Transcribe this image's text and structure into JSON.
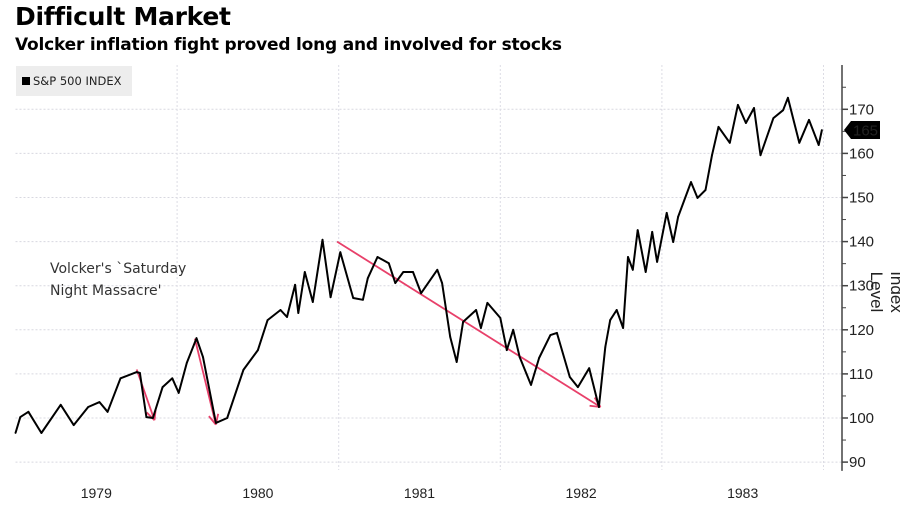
{
  "chart_data": {
    "type": "line",
    "title": "Difficult Market",
    "subtitle": "Volcker inflation fight proved long and involved for stocks",
    "ylabel": "Index Level",
    "xlabel": "",
    "ylim": [
      88,
      179
    ],
    "xlim": [
      1979.0,
      1984.0
    ],
    "y_axis_side": "right",
    "y_ticks": [
      90,
      100,
      110,
      120,
      130,
      140,
      150,
      160,
      170
    ],
    "x_ticks": [
      {
        "label": "1979",
        "value": 1979.5
      },
      {
        "label": "1980",
        "value": 1980.5
      },
      {
        "label": "1981",
        "value": 1981.5
      },
      {
        "label": "1982",
        "value": 1982.5
      },
      {
        "label": "1983",
        "value": 1983.5
      }
    ],
    "grid": true,
    "legend": {
      "position": "top-left",
      "entries": [
        "S&P 500 INDEX"
      ]
    },
    "last_value_label": "165",
    "line_color": "#000000",
    "arrow_color": "#e8406a",
    "annotation": "Volcker's `Saturday\nNight Massacre'",
    "series": [
      {
        "name": "S&P 500 INDEX",
        "x": [
          1979.0,
          1979.03,
          1979.08,
          1979.16,
          1979.28,
          1979.36,
          1979.45,
          1979.52,
          1979.57,
          1979.65,
          1979.75,
          1979.77,
          1979.81,
          1979.85,
          1979.91,
          1979.97,
          1980.01,
          1980.06,
          1980.12,
          1980.16,
          1980.24,
          1980.31,
          1980.41,
          1980.5,
          1980.56,
          1980.64,
          1980.68,
          1980.73,
          1980.75,
          1980.79,
          1980.84,
          1980.9,
          1980.95,
          1981.01,
          1981.09,
          1981.15,
          1981.18,
          1981.24,
          1981.31,
          1981.35,
          1981.4,
          1981.46,
          1981.51,
          1981.61,
          1981.64,
          1981.69,
          1981.73,
          1981.77,
          1981.85,
          1981.88,
          1981.92,
          1982.0,
          1982.04,
          1982.08,
          1982.12,
          1982.19,
          1982.24,
          1982.31,
          1982.35,
          1982.43,
          1982.48,
          1982.55,
          1982.61,
          1982.65,
          1982.68,
          1982.72,
          1982.76,
          1982.79,
          1982.82,
          1982.85,
          1982.9,
          1982.94,
          1982.97,
          1983.03,
          1983.07,
          1983.1,
          1983.18,
          1983.22,
          1983.27,
          1983.31,
          1983.35,
          1983.42,
          1983.47,
          1983.52,
          1983.57,
          1983.61,
          1983.69,
          1983.75,
          1983.78,
          1983.85,
          1983.91,
          1983.97,
          1983.99
        ],
        "y": [
          96.6,
          100.2,
          101.4,
          96.6,
          103.0,
          98.4,
          102.5,
          103.6,
          101.4,
          109.0,
          110.4,
          110.2,
          100.2,
          100.0,
          107.0,
          109.0,
          105.7,
          112.5,
          118.1,
          113.8,
          98.9,
          100.0,
          110.9,
          115.4,
          122.2,
          124.5,
          122.9,
          130.2,
          123.8,
          133.1,
          126.3,
          140.4,
          127.4,
          137.6,
          127.2,
          126.8,
          131.7,
          136.5,
          135.1,
          130.6,
          133.1,
          133.1,
          128.3,
          133.6,
          130.6,
          118.4,
          112.7,
          121.8,
          124.5,
          120.4,
          126.1,
          122.7,
          115.4,
          120.0,
          113.8,
          107.5,
          113.6,
          118.8,
          119.3,
          109.3,
          107.0,
          111.3,
          102.5,
          116.1,
          122.2,
          124.5,
          120.4,
          136.5,
          133.6,
          142.6,
          133.1,
          142.2,
          135.4,
          146.5,
          139.9,
          145.6,
          153.5,
          149.9,
          151.7,
          159.6,
          166.0,
          162.4,
          171.0,
          166.9,
          170.3,
          159.6,
          168.0,
          169.8,
          172.6,
          162.4,
          167.6,
          161.9,
          165.3
        ]
      }
    ],
    "arrows": [
      {
        "from": [
          1979.75,
          111.0
        ],
        "to": [
          1979.86,
          99.5
        ]
      },
      {
        "from": [
          1980.11,
          118.0
        ],
        "to": [
          1980.24,
          98.5
        ]
      },
      {
        "from": [
          1980.99,
          140.0
        ],
        "to": [
          1982.62,
          102.5
        ]
      }
    ]
  }
}
